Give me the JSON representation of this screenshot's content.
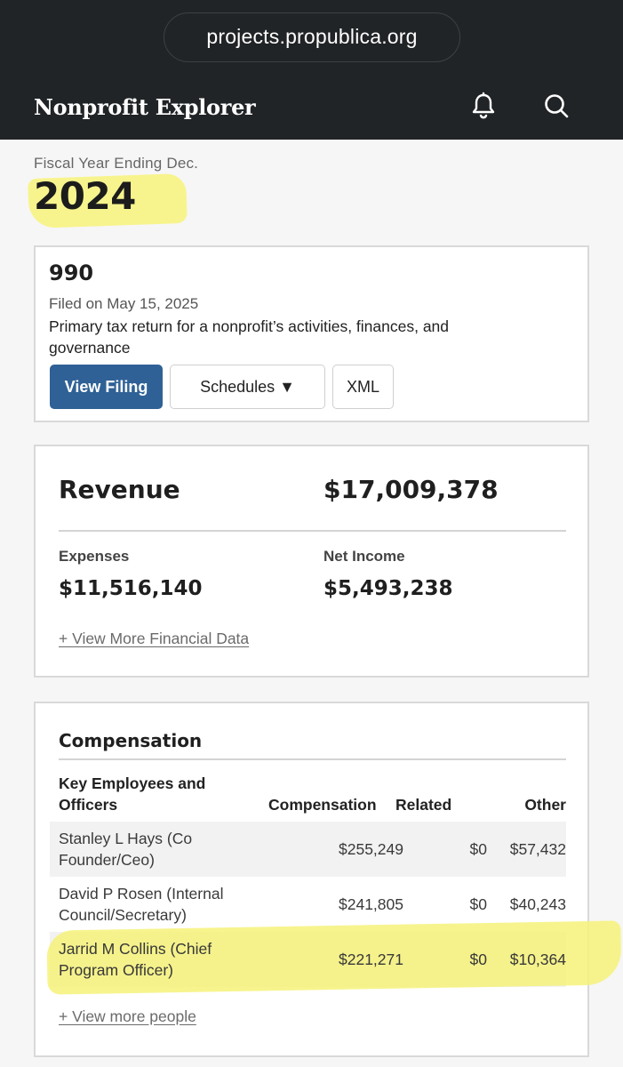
{
  "browser": {
    "url": "projects.propublica.org"
  },
  "header": {
    "brand": "Nonprofit Explorer",
    "icons": [
      "bell-icon",
      "search-icon"
    ]
  },
  "fiscal": {
    "label": "Fiscal Year Ending Dec.",
    "year": "2024"
  },
  "filing": {
    "form": "990",
    "filed_on": "Filed on May 15, 2025",
    "description": "Primary tax return for a nonprofit’s activities, finances, and governance",
    "buttons": {
      "view": "View Filing",
      "schedules": "Schedules ▼",
      "xml": "XML"
    }
  },
  "finance": {
    "revenue_label": "Revenue",
    "revenue_value": "$17,009,378",
    "expenses_label": "Expenses",
    "expenses_value": "$11,516,140",
    "net_income_label": "Net Income",
    "net_income_value": "$5,493,238",
    "more_link": "+ View More Financial Data"
  },
  "compensation": {
    "title": "Compensation",
    "headers": {
      "name": "Key Employees and Officers",
      "compensation": "Compensation",
      "related": "Related",
      "other": "Other"
    },
    "rows": [
      {
        "name": "Stanley L Hays (Co Founder/Ceo)",
        "compensation": "$255,249",
        "related": "$0",
        "other": "$57,432"
      },
      {
        "name": "David P Rosen (Internal Council/Secretary)",
        "compensation": "$241,805",
        "related": "$0",
        "other": "$40,243"
      },
      {
        "name": "Jarrid M Collins (Chief Program Officer)",
        "compensation": "$221,271",
        "related": "$0",
        "other": "$10,364"
      }
    ],
    "more_link": "+ View more people"
  },
  "colors": {
    "header_bg": "#212426",
    "button_blue": "#2f6196",
    "highlight": "#f6f27a"
  }
}
